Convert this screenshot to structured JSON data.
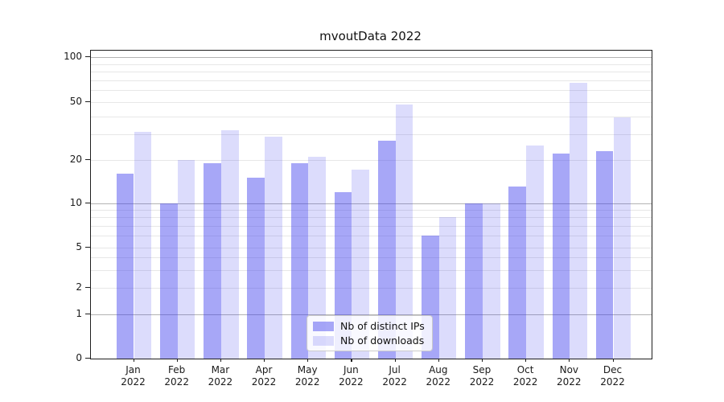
{
  "title": "mvoutData 2022",
  "chart_data": {
    "type": "bar",
    "title": "mvoutData 2022",
    "x_categories": [
      "Jan 2022",
      "Feb 2022",
      "Mar 2022",
      "Apr 2022",
      "May 2022",
      "Jun 2022",
      "Jul 2022",
      "Aug 2022",
      "Sep 2022",
      "Oct 2022",
      "Nov 2022",
      "Dec 2022"
    ],
    "y_ticks": [
      0,
      1,
      2,
      5,
      10,
      20,
      50,
      100
    ],
    "y_major_gridlines": [
      1,
      10,
      100
    ],
    "y_minor_gridlines": [
      2,
      3,
      4,
      5,
      6,
      7,
      8,
      9,
      20,
      30,
      40,
      50,
      60,
      70,
      80,
      90
    ],
    "yscale": "log-like with 0 baseline, labeled ticks 0,1,2,5,10,20,50,100",
    "ylim": [
      0,
      110
    ],
    "grid": true,
    "legend_position": "lower center",
    "series": [
      {
        "name": "Nb of distinct IPs",
        "color": "rgba(60,60,238,0.45)",
        "values": [
          16,
          10,
          19,
          15,
          19,
          12,
          27,
          6,
          10,
          13,
          22,
          23
        ]
      },
      {
        "name": "Nb of downloads",
        "color": "rgba(60,60,238,0.18)",
        "values": [
          31,
          20,
          32,
          29,
          21,
          17,
          48,
          8,
          10,
          25,
          67,
          39
        ]
      }
    ],
    "colors": {
      "grid_major": "#b3b3b3",
      "grid_minor": "#e7e7e7",
      "spine": "#1f1f1f",
      "text": "#1a1a1a"
    }
  }
}
